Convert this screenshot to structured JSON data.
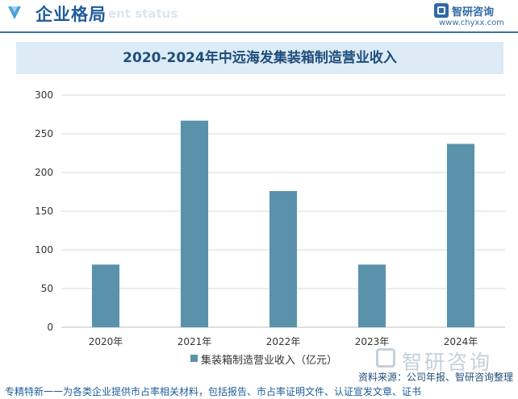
{
  "header": {
    "title": "企业格局",
    "subtitle": "ent status",
    "brand_name": "智研咨询",
    "brand_url": "www.chyxx.com"
  },
  "chart_data": {
    "type": "bar",
    "title": "2020-2024年中远海发集装箱制造营业收入",
    "categories": [
      "2020年",
      "2021年",
      "2022年",
      "2023年",
      "2024年"
    ],
    "series": [
      {
        "name": "集装箱制造营业收入（亿元）",
        "values": [
          81,
          267,
          176,
          81,
          237
        ]
      }
    ],
    "ylim": [
      0,
      300
    ],
    "yticks": [
      0,
      50,
      100,
      150,
      200,
      250,
      300
    ],
    "xlabel": "",
    "ylabel": "",
    "grid": true,
    "legend": "bottom",
    "bar_color": "#5b92ab"
  },
  "watermark": {
    "text": "智研咨询"
  },
  "source": "资料来源：公司年报、智研咨询整理",
  "footer": "专精特新一一为各类企业提供市占率相关材料，包括报告、市占率证明文件、认证宣发文章、证书"
}
